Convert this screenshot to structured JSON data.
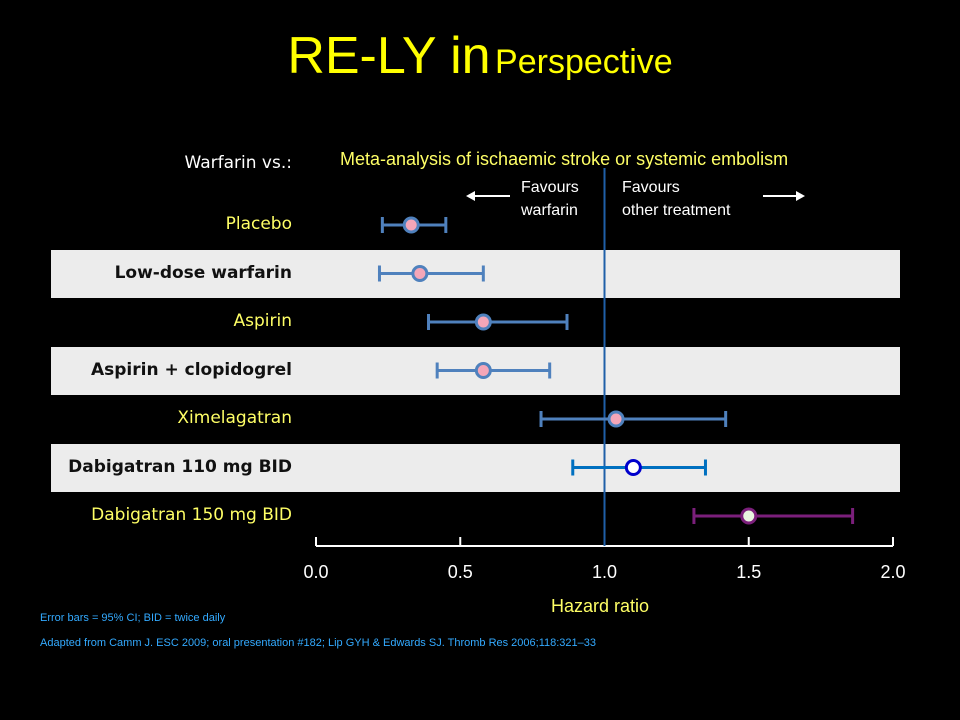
{
  "title": {
    "main": "RE-LY in",
    "sub": "Perspective"
  },
  "chart_data": {
    "type": "forest",
    "title": "Meta-analysis of ischaemic stroke or systemic embolism",
    "row_header": "Warfarin vs.:",
    "xlabel": "Hazard ratio",
    "xlim": [
      0.0,
      2.0
    ],
    "xticks": [
      "0.0",
      "0.5",
      "1.0",
      "1.5",
      "2.0"
    ],
    "reference_line": 1.0,
    "favours_left": [
      "Favours",
      "warfarin"
    ],
    "favours_right": [
      "Favours",
      "other treatment"
    ],
    "rows": [
      {
        "label": "Placebo",
        "hr": 0.33,
        "lo": 0.23,
        "hi": 0.45,
        "band": false,
        "style": "pink"
      },
      {
        "label": "Low-dose warfarin",
        "hr": 0.36,
        "lo": 0.22,
        "hi": 0.58,
        "band": true,
        "style": "pink"
      },
      {
        "label": "Aspirin",
        "hr": 0.58,
        "lo": 0.39,
        "hi": 0.87,
        "band": false,
        "style": "pink"
      },
      {
        "label": "Aspirin + clopidogrel",
        "hr": 0.58,
        "lo": 0.42,
        "hi": 0.81,
        "band": true,
        "style": "pink"
      },
      {
        "label": "Ximelagatran",
        "hr": 1.04,
        "lo": 0.78,
        "hi": 1.42,
        "band": false,
        "style": "pink"
      },
      {
        "label": "Dabigatran 110 mg BID",
        "hr": 1.1,
        "lo": 0.89,
        "hi": 1.35,
        "band": true,
        "style": "blue"
      },
      {
        "label": "Dabigatran 150 mg BID",
        "hr": 1.5,
        "lo": 1.31,
        "hi": 1.86,
        "band": false,
        "style": "purple"
      }
    ]
  },
  "colors": {
    "title": "#ffff00",
    "pink_line": "#4f81bd",
    "pink_fill": "#f4a6b8",
    "blue_line": "#0070c0",
    "blue_marker": "#0000cc",
    "purple_line": "#7b1f7b",
    "purple_fill": "#e8f5e0"
  },
  "footnotes": {
    "line1": "Error bars = 95% CI; BID = twice daily",
    "line2": "Adapted from Camm J. ESC 2009; oral presentation #182; Lip GYH & Edwards SJ. Thromb Res 2006;118:321–33"
  }
}
